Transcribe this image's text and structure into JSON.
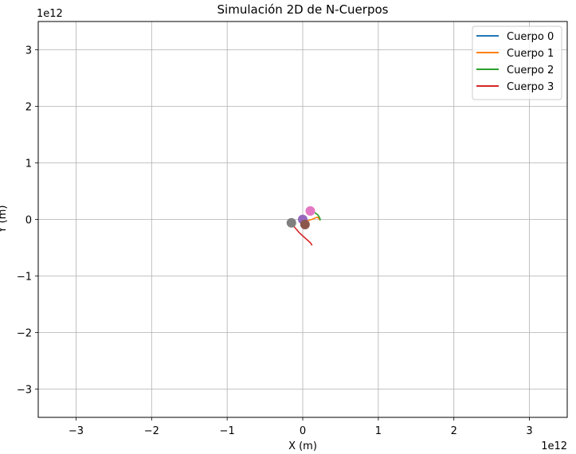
{
  "chart_data": {
    "type": "line",
    "title": "Simulación 2D de N-Cuerpos",
    "xlabel": "X (m)",
    "ylabel": "Y (m)",
    "x_offset_label": "1e12",
    "y_offset_label": "1e12",
    "xlim": [
      -3.5,
      3.5
    ],
    "ylim": [
      -3.5,
      3.5
    ],
    "xticks": [
      -3,
      -2,
      -1,
      0,
      1,
      2,
      3
    ],
    "yticks": [
      -3,
      -2,
      -1,
      0,
      1,
      2,
      3
    ],
    "xtick_labels": [
      "−3",
      "−2",
      "−1",
      "0",
      "1",
      "2",
      "3"
    ],
    "ytick_labels": [
      "−3",
      "−2",
      "−1",
      "0",
      "1",
      "2",
      "3"
    ],
    "grid": true,
    "legend_position": "top-right",
    "series": [
      {
        "name": "Cuerpo 0",
        "color": "#1f77b4",
        "x": [
          0.0,
          0.005,
          0.01
        ],
        "y": [
          0.0,
          0.002,
          0.003
        ]
      },
      {
        "name": "Cuerpo 1",
        "color": "#ff7f0e",
        "x": [
          0.05,
          0.12,
          0.17,
          0.2,
          0.22
        ],
        "y": [
          -0.03,
          0.0,
          0.03,
          0.04,
          0.0
        ]
      },
      {
        "name": "Cuerpo 2",
        "color": "#2ca02c",
        "x": [
          0.1,
          0.16,
          0.2,
          0.22,
          0.23,
          0.23
        ],
        "y": [
          0.15,
          0.12,
          0.08,
          0.04,
          0.01,
          -0.01
        ]
      },
      {
        "name": "Cuerpo 3",
        "color": "#d62728",
        "x": [
          -0.15,
          -0.1,
          -0.05,
          0.0,
          0.05,
          0.1,
          0.12
        ],
        "y": [
          -0.07,
          -0.15,
          -0.23,
          -0.29,
          -0.35,
          -0.41,
          -0.45
        ]
      }
    ],
    "markers": [
      {
        "x": 0.0,
        "y": 0.0,
        "color": "#9467bd"
      },
      {
        "x": 0.03,
        "y": -0.09,
        "color": "#8c564b"
      },
      {
        "x": 0.1,
        "y": 0.15,
        "color": "#e377c2"
      },
      {
        "x": -0.15,
        "y": -0.06,
        "color": "#7f7f7f"
      }
    ]
  }
}
